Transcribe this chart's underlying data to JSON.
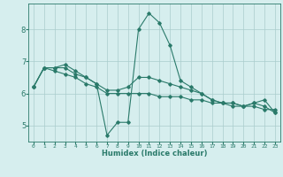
{
  "xlabel": "Humidex (Indice chaleur)",
  "ylabel": "",
  "bg_color": "#d6eeee",
  "grid_color": "#aacccc",
  "line_color": "#2a7a6a",
  "xlim": [
    -0.5,
    23.5
  ],
  "ylim": [
    4.5,
    8.8
  ],
  "xticks": [
    0,
    1,
    2,
    3,
    4,
    5,
    6,
    7,
    8,
    9,
    10,
    11,
    12,
    13,
    14,
    15,
    16,
    17,
    18,
    19,
    20,
    21,
    22,
    23
  ],
  "yticks": [
    5,
    6,
    7,
    8
  ],
  "series": [
    [
      6.2,
      6.8,
      6.8,
      6.9,
      6.7,
      6.5,
      6.3,
      4.7,
      5.1,
      5.1,
      8.0,
      8.5,
      8.2,
      7.5,
      6.4,
      6.2,
      6.0,
      5.8,
      5.7,
      5.7,
      5.6,
      5.7,
      5.8,
      5.4
    ],
    [
      6.2,
      6.8,
      6.7,
      6.6,
      6.5,
      6.3,
      6.2,
      6.0,
      6.0,
      6.0,
      6.0,
      6.0,
      5.9,
      5.9,
      5.9,
      5.8,
      5.8,
      5.7,
      5.7,
      5.6,
      5.6,
      5.6,
      5.5,
      5.5
    ],
    [
      6.2,
      6.8,
      6.8,
      6.8,
      6.6,
      6.5,
      6.3,
      6.1,
      6.1,
      6.2,
      6.5,
      6.5,
      6.4,
      6.3,
      6.2,
      6.1,
      6.0,
      5.8,
      5.7,
      5.7,
      5.6,
      5.7,
      5.6,
      5.4
    ]
  ]
}
